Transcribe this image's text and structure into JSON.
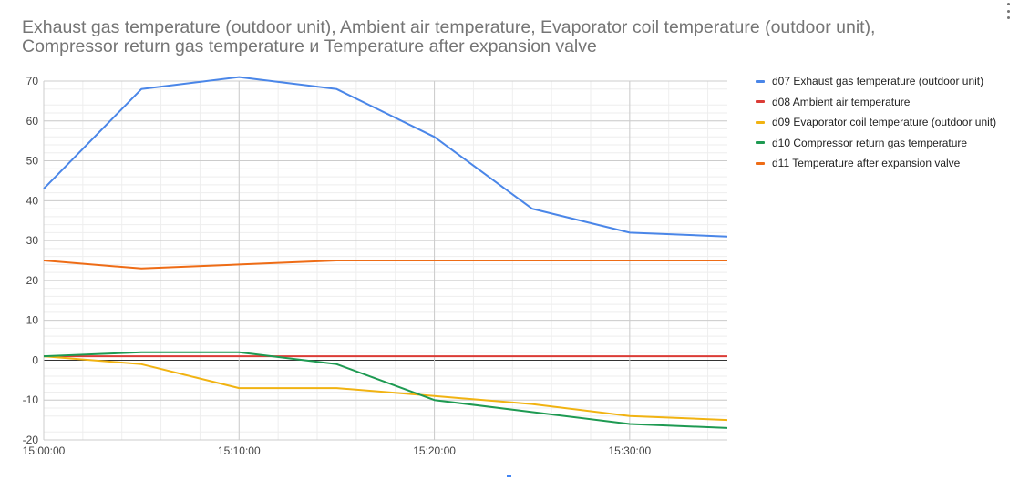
{
  "menu_icon": "vertical-dots-icon",
  "colors": {
    "grid_minor": "#eeeeee",
    "grid_major": "#cccccc",
    "zero_line": "#333333",
    "text": "#444444"
  },
  "chart_data": {
    "type": "line",
    "title": "Exhaust gas temperature (outdoor unit), Ambient air temperature, Evaporator coil temperature (outdoor unit), Compressor return gas temperature и Temperature after expansion valve",
    "xlabel": "",
    "ylabel": "",
    "x": [
      "15:00:00",
      "15:05:00",
      "15:10:00",
      "15:15:00",
      "15:20:00",
      "15:25:00",
      "15:30:00",
      "15:35:00"
    ],
    "x_ticks": [
      "15:00:00",
      "15:10:00",
      "15:20:00",
      "15:30:00"
    ],
    "x_tick_positions": [
      0,
      2,
      4,
      6
    ],
    "ylim": [
      -20,
      70
    ],
    "y_ticks": [
      70,
      60,
      50,
      40,
      30,
      20,
      10,
      0,
      -10,
      -20
    ],
    "grid": true,
    "legend_position": "right",
    "series": [
      {
        "name": "d07 Exhaust gas temperature (outdoor unit)",
        "color": "#4a86e8",
        "values": [
          43,
          68,
          71,
          68,
          56,
          38,
          32,
          31
        ]
      },
      {
        "name": "d08 Ambient air temperature",
        "color": "#db3c36",
        "values": [
          1,
          1,
          1,
          1,
          1,
          1,
          1,
          1
        ]
      },
      {
        "name": "d09 Evaporator coil temperature (outdoor unit)",
        "color": "#f1b312",
        "values": [
          1,
          -1,
          -7,
          -7,
          -9,
          -11,
          -14,
          -15
        ]
      },
      {
        "name": "d10 Compressor return gas temperature",
        "color": "#1e9a52",
        "values": [
          1,
          2,
          2,
          -1,
          -10,
          -13,
          -16,
          -17
        ]
      },
      {
        "name": "d11 Temperature after expansion valve",
        "color": "#ee6c16",
        "values": [
          25,
          23,
          24,
          25,
          25,
          25,
          25,
          25
        ]
      }
    ]
  }
}
